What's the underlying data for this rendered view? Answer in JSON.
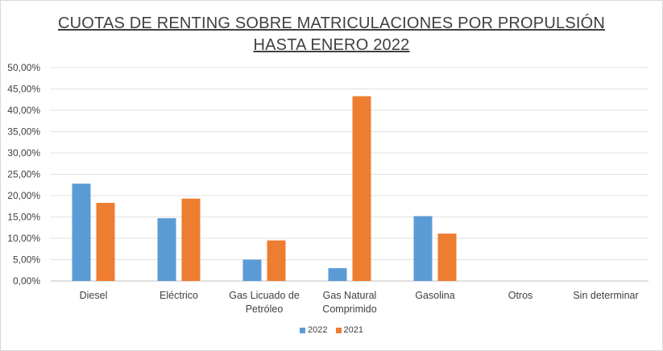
{
  "chart_data": {
    "type": "bar",
    "title": "CUOTAS DE RENTING SOBRE MATRICULACIONES POR PROPULSIÓN",
    "subtitle": "HASTA ENERO 2022",
    "categories": [
      "Diesel",
      "Eléctrico",
      "Gas Licuado de Petróleo",
      "Gas Natural Comprimido",
      "Gasolina",
      "Otros",
      "Sin determinar"
    ],
    "category_lines": [
      [
        "Diesel"
      ],
      [
        "Eléctrico"
      ],
      [
        "Gas Licuado de",
        "Petróleo"
      ],
      [
        "Gas Natural",
        "Comprimido"
      ],
      [
        "Gasolina"
      ],
      [
        "Otros"
      ],
      [
        "Sin determinar"
      ]
    ],
    "series": [
      {
        "name": "2022",
        "color": "#5b9bd5",
        "values": [
          22.8,
          14.7,
          5.0,
          3.0,
          15.2,
          0,
          0
        ]
      },
      {
        "name": "2021",
        "color": "#ed7d31",
        "values": [
          18.3,
          19.3,
          9.5,
          43.3,
          11.1,
          0,
          0
        ]
      }
    ],
    "ylim": [
      0,
      50
    ],
    "yticks": [
      "0,00%",
      "5,00%",
      "10,00%",
      "15,00%",
      "20,00%",
      "25,00%",
      "30,00%",
      "35,00%",
      "40,00%",
      "45,00%",
      "50,00%"
    ],
    "grid": true,
    "legend_position": "bottom"
  }
}
